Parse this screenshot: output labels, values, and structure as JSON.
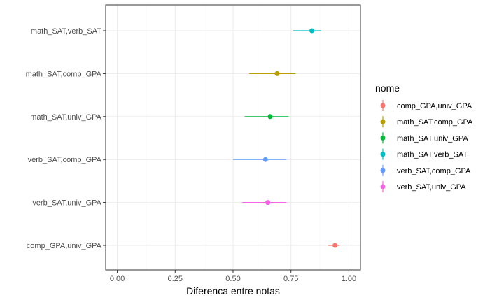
{
  "chart_data": {
    "type": "scatter",
    "subtype": "pointrange",
    "xlabel": "Diferenca entre notas",
    "ylabel": "",
    "xlim": [
      -0.05,
      1.05
    ],
    "x_ticks": [
      0.0,
      0.25,
      0.5,
      0.75,
      1.0
    ],
    "x_tick_labels": [
      "0.00",
      "0.25",
      "0.50",
      "0.75",
      "1.00"
    ],
    "grid": true,
    "legend": {
      "title": "nome",
      "placement": "right",
      "entries": [
        "comp_GPA,univ_GPA",
        "math_SAT,comp_GPA",
        "math_SAT,univ_GPA",
        "math_SAT,verb_SAT",
        "verb_SAT,comp_GPA",
        "verb_SAT,univ_GPA"
      ]
    },
    "categories": [
      "comp_GPA,univ_GPA",
      "verb_SAT,univ_GPA",
      "verb_SAT,comp_GPA",
      "math_SAT,univ_GPA",
      "math_SAT,comp_GPA",
      "math_SAT,verb_SAT"
    ],
    "series": [
      {
        "name": "comp_GPA,univ_GPA",
        "color": "#F8766D",
        "estimate": 0.94,
        "low": 0.91,
        "high": 0.96
      },
      {
        "name": "verb_SAT,univ_GPA",
        "color": "#F564E3",
        "estimate": 0.65,
        "low": 0.54,
        "high": 0.73
      },
      {
        "name": "verb_SAT,comp_GPA",
        "color": "#619CFF",
        "estimate": 0.64,
        "low": 0.5,
        "high": 0.73
      },
      {
        "name": "math_SAT,univ_GPA",
        "color": "#00BA38",
        "estimate": 0.66,
        "low": 0.55,
        "high": 0.74
      },
      {
        "name": "math_SAT,comp_GPA",
        "color": "#B79F00",
        "estimate": 0.69,
        "low": 0.57,
        "high": 0.77
      },
      {
        "name": "math_SAT,verb_SAT",
        "color": "#00BFC4",
        "estimate": 0.84,
        "low": 0.76,
        "high": 0.88
      }
    ]
  }
}
